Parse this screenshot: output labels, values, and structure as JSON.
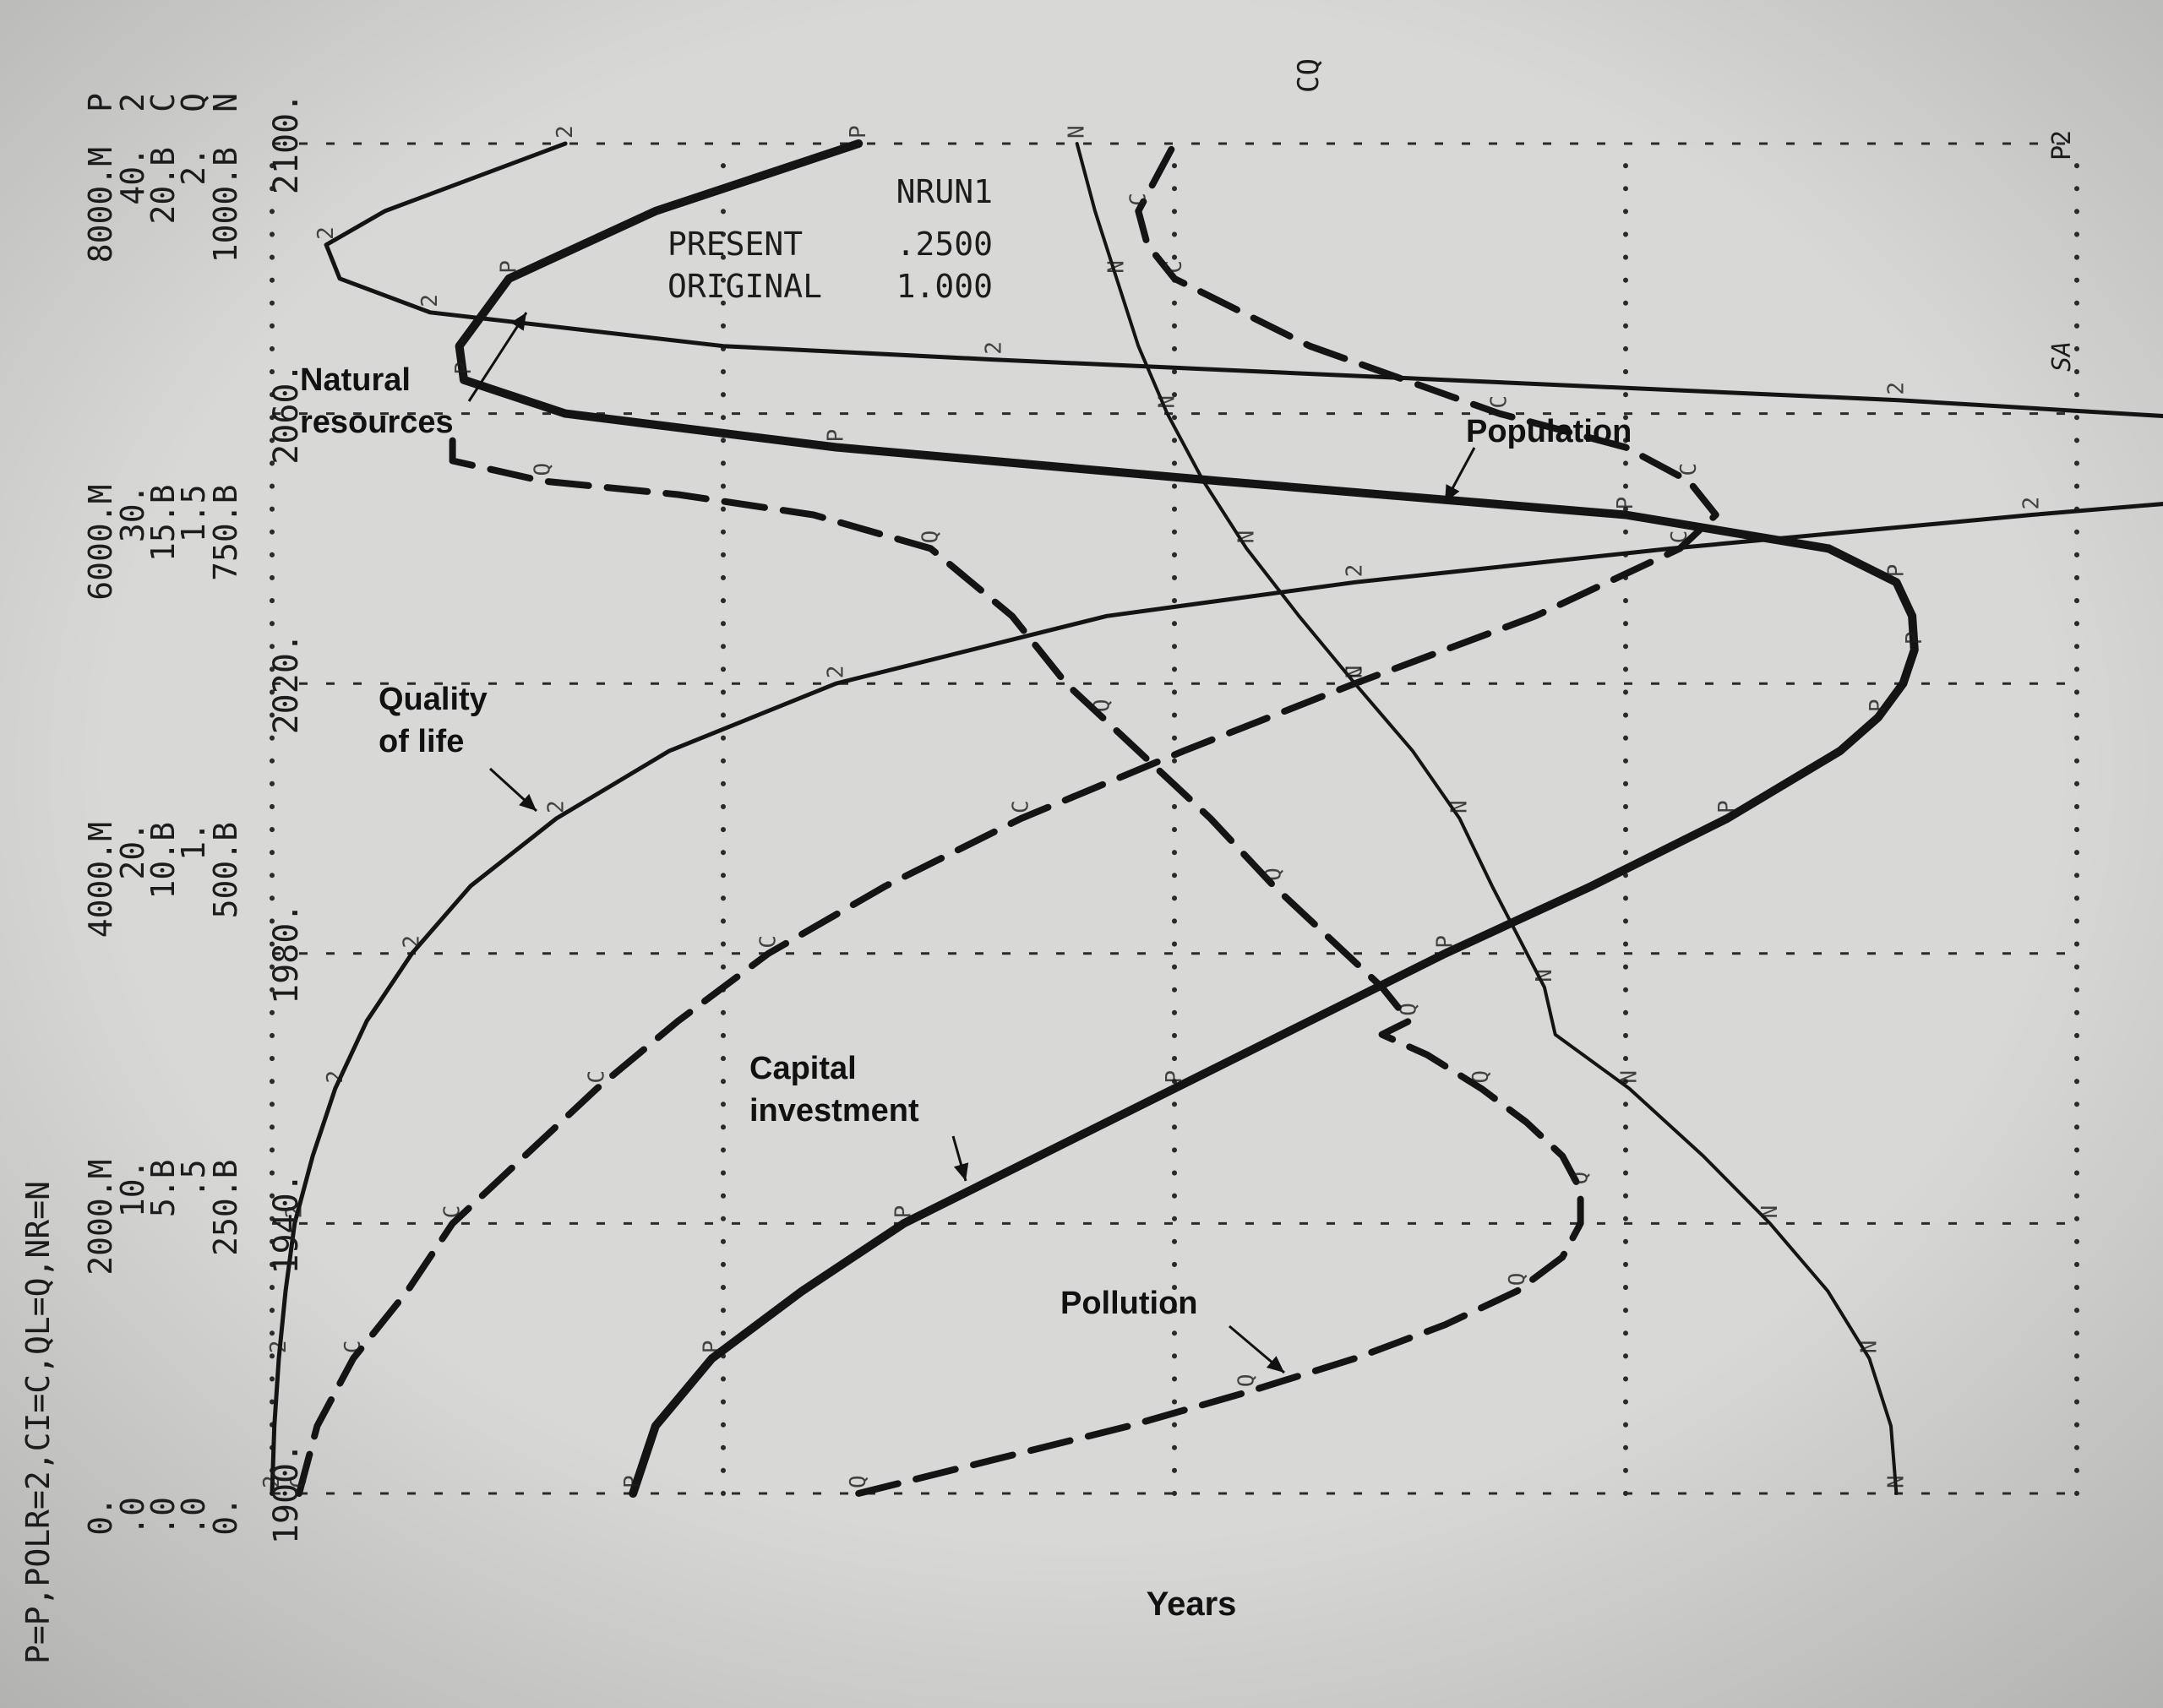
{
  "chart_data": {
    "type": "line",
    "header_legend": "P=P,POLR=2,CI=C,QL=Q,NR=N",
    "top_label": "CQ",
    "corner_labels": [
      "P2",
      "SA"
    ],
    "xlabel": "Years",
    "x_ticks": [
      "1900.",
      "1940.",
      "1980.",
      "2020.",
      "2060.",
      "2100."
    ],
    "xlim": [
      1900,
      2100
    ],
    "y_scales": [
      {
        "symbol": "P",
        "ticks": [
          "0.",
          "2000.M",
          "4000.M",
          "6000.M",
          "8000.M"
        ],
        "range": [
          0,
          8000
        ]
      },
      {
        "symbol": "2",
        "ticks": [
          ".0",
          "10.",
          "20.",
          "30.",
          "40."
        ],
        "range": [
          0,
          40
        ]
      },
      {
        "symbol": "C",
        "ticks": [
          ".0",
          "5.B",
          "10.B",
          "15.B",
          "20.B"
        ],
        "range": [
          0,
          20
        ]
      },
      {
        "symbol": "Q",
        "ticks": [
          ".0",
          ".5",
          "1.",
          "1.5",
          "2."
        ],
        "range": [
          0,
          2
        ]
      },
      {
        "symbol": "N",
        "ticks": [
          "0.",
          "250.B",
          "500.B",
          "750.B",
          "1000.B"
        ],
        "range": [
          0,
          1000
        ]
      }
    ],
    "run_info": {
      "title": "NRUN1",
      "rows": [
        [
          "PRESENT",
          ".2500"
        ],
        [
          "ORIGINAL",
          "1.000"
        ]
      ]
    },
    "series": [
      {
        "name": "Natural resources",
        "symbol": "N",
        "style": "thin",
        "x": [
          1900,
          1910,
          1920,
          1930,
          1940,
          1950,
          1960,
          1968,
          1975,
          1990,
          2000,
          2010,
          2020,
          2030,
          2040,
          2050,
          2060,
          2070,
          2080,
          2090,
          2100
        ],
        "y": [
          900,
          897,
          885,
          862,
          830,
          793,
          752,
          711,
          705,
          676,
          658,
          632,
          600,
          569,
          540,
          516,
          496,
          480,
          468,
          456,
          446
        ]
      },
      {
        "name": "Population",
        "symbol": "P",
        "style": "bold",
        "x": [
          1900,
          1910,
          1920,
          1930,
          1940,
          1950,
          1960,
          1970,
          1980,
          1990,
          2000,
          2010,
          2015,
          2020,
          2025,
          2030,
          2035,
          2040,
          2045,
          2050,
          2055,
          2060,
          2065,
          2070,
          2080,
          2090,
          2100
        ],
        "y": [
          1600,
          1700,
          1950,
          2350,
          2800,
          3400,
          4000,
          4600,
          5200,
          5850,
          6450,
          6950,
          7120,
          7230,
          7280,
          7270,
          7200,
          6900,
          6000,
          4200,
          2500,
          1300,
          850,
          830,
          1050,
          1700,
          2600
        ]
      },
      {
        "name": "Quality of life",
        "symbol": "Q",
        "style": "dashed",
        "x": [
          1900,
          1905,
          1910,
          1915,
          1920,
          1925,
          1930,
          1935,
          1940,
          1945,
          1950,
          1955,
          1960,
          1965,
          1968,
          1970,
          1975,
          1980,
          1990,
          2000,
          2010,
          2015,
          2020,
          2030,
          2040,
          2045,
          2048,
          2050,
          2053,
          2056
        ],
        "y": [
          0.65,
          0.8,
          0.95,
          1.08,
          1.2,
          1.3,
          1.38,
          1.43,
          1.45,
          1.45,
          1.43,
          1.39,
          1.34,
          1.28,
          1.23,
          1.26,
          1.23,
          1.19,
          1.11,
          1.04,
          0.96,
          0.92,
          0.88,
          0.82,
          0.73,
          0.6,
          0.45,
          0.3,
          0.2,
          0.2
        ]
      },
      {
        "name": "Capital investment",
        "symbol": "C",
        "style": "dashed",
        "x": [
          1900,
          1910,
          1920,
          1930,
          1940,
          1950,
          1960,
          1970,
          1980,
          1990,
          2000,
          2010,
          2020,
          2030,
          2040,
          2045,
          2050,
          2055,
          2060,
          2070,
          2080,
          2085,
          2090,
          2100
        ],
        "y": [
          0.3,
          0.5,
          0.9,
          1.5,
          2.0,
          2.8,
          3.6,
          4.5,
          5.5,
          6.8,
          8.3,
          10.1,
          12.0,
          14.0,
          15.6,
          16.0,
          15.7,
          15.0,
          13.6,
          11.5,
          10.0,
          9.7,
          9.6,
          10.0
        ]
      },
      {
        "name": "Pollution",
        "symbol": "2",
        "style": "medium",
        "x": [
          1900,
          1910,
          1920,
          1930,
          1940,
          1950,
          1960,
          1970,
          1980,
          1990,
          2000,
          2010,
          2020,
          2030,
          2035,
          2040,
          2045,
          2050,
          2055,
          2058,
          2062,
          2065,
          2068,
          2070,
          2075,
          2080,
          2085,
          2090,
          2100
        ],
        "y": [
          0,
          0.05,
          0.15,
          0.3,
          0.5,
          0.9,
          1.4,
          2.1,
          3.1,
          4.4,
          6.3,
          8.8,
          12.5,
          18.5,
          24,
          31,
          39,
          48,
          52,
          46,
          36,
          26,
          16,
          10,
          3.5,
          1.5,
          1.2,
          2.5,
          6.5
        ]
      }
    ],
    "annotations": [
      "Natural resources",
      "Population",
      "Quality of life",
      "Capital investment",
      "Pollution"
    ],
    "grid": true
  }
}
